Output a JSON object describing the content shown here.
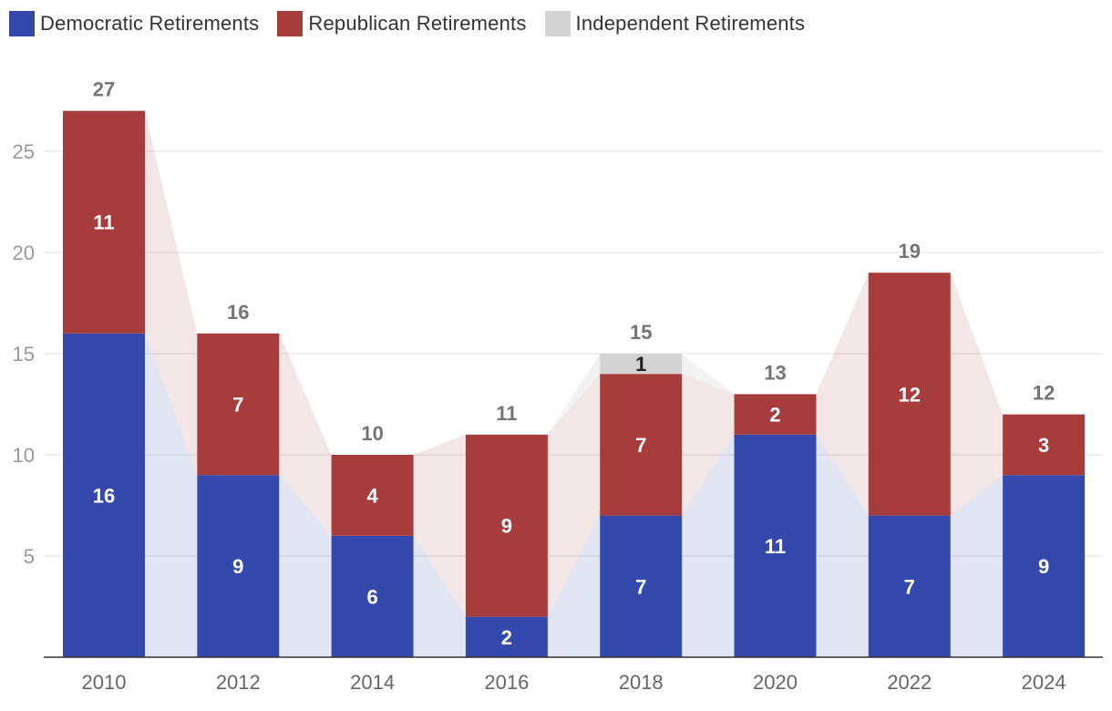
{
  "chart_data": {
    "type": "bar",
    "stacked": true,
    "categories": [
      "2010",
      "2012",
      "2014",
      "2016",
      "2018",
      "2020",
      "2022",
      "2024"
    ],
    "series": [
      {
        "name": "Democratic Retirements",
        "color": "#3449ab",
        "values": [
          16,
          9,
          6,
          2,
          7,
          11,
          7,
          9
        ]
      },
      {
        "name": "Republican Retirements",
        "color": "#a63c3c",
        "values": [
          11,
          7,
          4,
          9,
          7,
          2,
          12,
          3
        ]
      },
      {
        "name": "Independent Retirements",
        "color": "#d3d3d3",
        "values": [
          0,
          0,
          0,
          0,
          1,
          0,
          0,
          0
        ]
      }
    ],
    "totals": [
      27,
      16,
      10,
      11,
      15,
      13,
      19,
      12
    ],
    "y_ticks": [
      5,
      10,
      15,
      20,
      25
    ],
    "ylim": [
      0,
      29
    ],
    "legend_position": "top-left",
    "grid": true
  }
}
